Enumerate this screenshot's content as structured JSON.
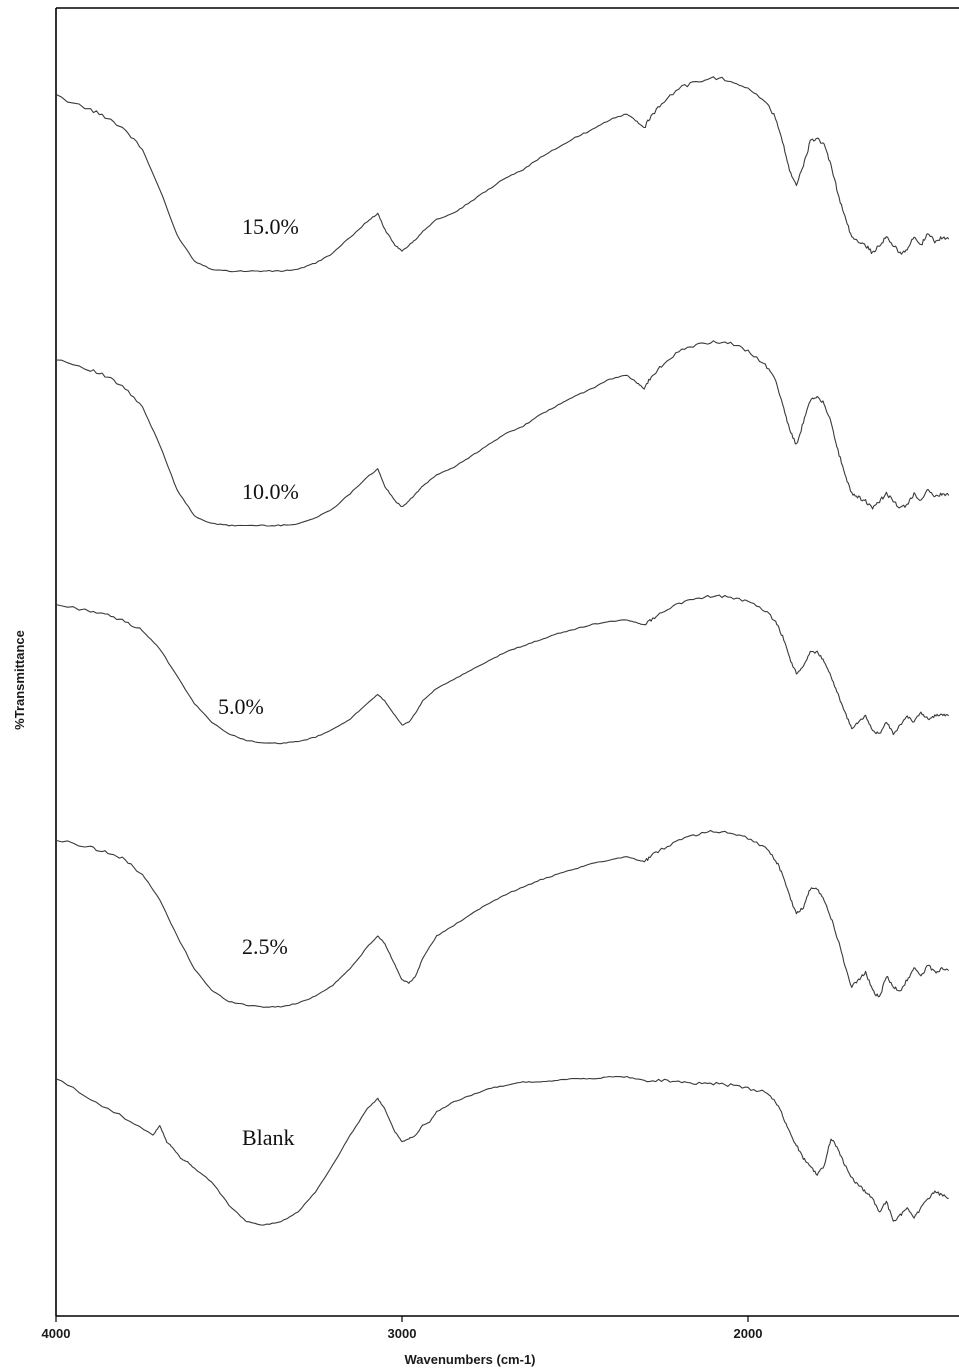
{
  "chart_data": {
    "type": "line",
    "xlabel": "Wavenumbers (cm-1)",
    "ylabel": "%Transmittance",
    "title": "",
    "xlim": [
      4000,
      1400
    ],
    "x_reversed": true,
    "x_ticks": [
      {
        "value": 4000,
        "label": "4000"
      },
      {
        "value": 3000,
        "label": "3000"
      },
      {
        "value": 2000,
        "label": "2000"
      }
    ],
    "y_ticks_shown": false,
    "grid": false,
    "legend": "none",
    "series_stacked_offset": true,
    "line_color": "#3a3a3a",
    "series": [
      {
        "name": "15.0%",
        "x": [
          4000,
          3900,
          3850,
          3800,
          3750,
          3700,
          3650,
          3600,
          3550,
          3500,
          3450,
          3400,
          3350,
          3300,
          3250,
          3200,
          3150,
          3100,
          3070,
          3050,
          3020,
          3000,
          2980,
          2960,
          2940,
          2900,
          2850,
          2800,
          2750,
          2700,
          2650,
          2600,
          2550,
          2500,
          2450,
          2400,
          2350,
          2320,
          2300,
          2280,
          2250,
          2200,
          2150,
          2100,
          2050,
          2000,
          1950,
          1920,
          1900,
          1880,
          1860,
          1840,
          1820,
          1800,
          1780,
          1760,
          1740,
          1720,
          1700,
          1680,
          1660,
          1640,
          1620,
          1600,
          1580,
          1560,
          1540,
          1520,
          1500,
          1480,
          1460,
          1440,
          1420
        ],
        "y": [
          0.95,
          0.88,
          0.84,
          0.78,
          0.68,
          0.48,
          0.25,
          0.12,
          0.08,
          0.07,
          0.07,
          0.07,
          0.07,
          0.08,
          0.11,
          0.16,
          0.24,
          0.32,
          0.36,
          0.28,
          0.2,
          0.17,
          0.2,
          0.23,
          0.27,
          0.33,
          0.36,
          0.42,
          0.48,
          0.54,
          0.58,
          0.64,
          0.69,
          0.74,
          0.78,
          0.83,
          0.86,
          0.82,
          0.79,
          0.85,
          0.91,
          0.99,
          1.02,
          1.04,
          1.03,
          0.99,
          0.92,
          0.84,
          0.72,
          0.58,
          0.5,
          0.6,
          0.72,
          0.74,
          0.7,
          0.6,
          0.46,
          0.34,
          0.24,
          0.22,
          0.2,
          0.16,
          0.2,
          0.24,
          0.2,
          0.16,
          0.18,
          0.24,
          0.2,
          0.26,
          0.22,
          0.24,
          0.23
        ]
      },
      {
        "name": "10.0%",
        "x": [
          4000,
          3900,
          3850,
          3800,
          3750,
          3700,
          3650,
          3600,
          3550,
          3500,
          3450,
          3400,
          3350,
          3300,
          3250,
          3200,
          3150,
          3100,
          3070,
          3050,
          3020,
          3000,
          2980,
          2960,
          2940,
          2900,
          2850,
          2800,
          2750,
          2700,
          2650,
          2600,
          2550,
          2500,
          2450,
          2400,
          2350,
          2320,
          2300,
          2280,
          2250,
          2200,
          2150,
          2100,
          2050,
          2000,
          1950,
          1920,
          1900,
          1880,
          1860,
          1840,
          1820,
          1800,
          1780,
          1760,
          1740,
          1720,
          1700,
          1680,
          1660,
          1640,
          1620,
          1600,
          1580,
          1560,
          1540,
          1520,
          1500,
          1480,
          1460,
          1440,
          1420
        ],
        "y": [
          0.96,
          0.9,
          0.86,
          0.8,
          0.7,
          0.5,
          0.26,
          0.12,
          0.08,
          0.07,
          0.07,
          0.07,
          0.07,
          0.08,
          0.11,
          0.16,
          0.24,
          0.33,
          0.37,
          0.28,
          0.2,
          0.17,
          0.2,
          0.24,
          0.28,
          0.34,
          0.38,
          0.44,
          0.5,
          0.56,
          0.6,
          0.66,
          0.71,
          0.76,
          0.8,
          0.85,
          0.87,
          0.83,
          0.8,
          0.86,
          0.92,
          1.0,
          1.03,
          1.05,
          1.04,
          1.0,
          0.93,
          0.84,
          0.72,
          0.58,
          0.5,
          0.62,
          0.74,
          0.76,
          0.72,
          0.62,
          0.47,
          0.34,
          0.24,
          0.22,
          0.2,
          0.16,
          0.2,
          0.24,
          0.2,
          0.16,
          0.18,
          0.24,
          0.2,
          0.26,
          0.22,
          0.24,
          0.23
        ]
      },
      {
        "name": "5.0%",
        "x": [
          4000,
          3900,
          3850,
          3800,
          3750,
          3700,
          3650,
          3600,
          3550,
          3500,
          3450,
          3400,
          3350,
          3300,
          3250,
          3200,
          3150,
          3100,
          3070,
          3050,
          3020,
          3000,
          2980,
          2960,
          2940,
          2900,
          2850,
          2800,
          2750,
          2700,
          2650,
          2600,
          2550,
          2500,
          2450,
          2400,
          2350,
          2320,
          2300,
          2280,
          2250,
          2200,
          2150,
          2100,
          2050,
          2000,
          1950,
          1920,
          1900,
          1880,
          1860,
          1840,
          1820,
          1800,
          1780,
          1760,
          1740,
          1720,
          1700,
          1680,
          1660,
          1640,
          1620,
          1600,
          1580,
          1560,
          1540,
          1520,
          1500,
          1480,
          1460,
          1440,
          1420
        ],
        "y": [
          0.97,
          0.93,
          0.9,
          0.86,
          0.8,
          0.68,
          0.5,
          0.32,
          0.2,
          0.12,
          0.08,
          0.06,
          0.06,
          0.07,
          0.1,
          0.15,
          0.22,
          0.32,
          0.38,
          0.34,
          0.24,
          0.18,
          0.2,
          0.26,
          0.34,
          0.42,
          0.48,
          0.54,
          0.6,
          0.66,
          0.7,
          0.74,
          0.78,
          0.81,
          0.84,
          0.86,
          0.87,
          0.85,
          0.84,
          0.87,
          0.92,
          0.98,
          1.01,
          1.03,
          1.02,
          0.99,
          0.93,
          0.86,
          0.76,
          0.62,
          0.52,
          0.56,
          0.66,
          0.66,
          0.6,
          0.5,
          0.38,
          0.26,
          0.16,
          0.2,
          0.24,
          0.14,
          0.12,
          0.2,
          0.12,
          0.18,
          0.24,
          0.2,
          0.26,
          0.22,
          0.24,
          0.25,
          0.24
        ]
      },
      {
        "name": "2.5%",
        "x": [
          4000,
          3900,
          3850,
          3800,
          3750,
          3700,
          3650,
          3600,
          3550,
          3500,
          3450,
          3400,
          3350,
          3300,
          3250,
          3200,
          3150,
          3100,
          3070,
          3050,
          3020,
          3000,
          2980,
          2960,
          2940,
          2900,
          2850,
          2800,
          2750,
          2700,
          2650,
          2600,
          2550,
          2500,
          2450,
          2400,
          2350,
          2320,
          2300,
          2280,
          2250,
          2200,
          2150,
          2100,
          2050,
          2000,
          1950,
          1920,
          1900,
          1880,
          1860,
          1840,
          1820,
          1800,
          1780,
          1760,
          1740,
          1720,
          1700,
          1680,
          1660,
          1640,
          1620,
          1600,
          1580,
          1560,
          1540,
          1520,
          1500,
          1480,
          1460,
          1440,
          1420
        ],
        "y": [
          0.97,
          0.93,
          0.9,
          0.86,
          0.78,
          0.64,
          0.44,
          0.26,
          0.14,
          0.08,
          0.06,
          0.05,
          0.05,
          0.07,
          0.11,
          0.17,
          0.26,
          0.38,
          0.44,
          0.4,
          0.28,
          0.2,
          0.18,
          0.22,
          0.32,
          0.44,
          0.5,
          0.56,
          0.62,
          0.67,
          0.71,
          0.75,
          0.78,
          0.81,
          0.84,
          0.86,
          0.88,
          0.86,
          0.85,
          0.88,
          0.92,
          0.97,
          1.0,
          1.02,
          1.01,
          0.98,
          0.93,
          0.86,
          0.78,
          0.66,
          0.56,
          0.6,
          0.7,
          0.7,
          0.64,
          0.54,
          0.42,
          0.28,
          0.16,
          0.2,
          0.24,
          0.14,
          0.1,
          0.22,
          0.16,
          0.14,
          0.2,
          0.26,
          0.22,
          0.28,
          0.24,
          0.26,
          0.25
        ]
      },
      {
        "name": "Blank",
        "x": [
          4000,
          3900,
          3800,
          3720,
          3700,
          3680,
          3660,
          3640,
          3620,
          3600,
          3550,
          3500,
          3450,
          3400,
          3350,
          3300,
          3250,
          3200,
          3150,
          3100,
          3070,
          3050,
          3020,
          3000,
          2980,
          2960,
          2940,
          2920,
          2900,
          2850,
          2800,
          2750,
          2700,
          2650,
          2600,
          2550,
          2500,
          2450,
          2400,
          2350,
          2300,
          2250,
          2200,
          2150,
          2100,
          2050,
          2000,
          1950,
          1920,
          1900,
          1880,
          1860,
          1840,
          1820,
          1800,
          1780,
          1760,
          1740,
          1720,
          1700,
          1680,
          1660,
          1640,
          1620,
          1600,
          1580,
          1560,
          1540,
          1520,
          1500,
          1480,
          1460,
          1440,
          1420
        ],
        "y": [
          0.98,
          0.86,
          0.74,
          0.64,
          0.7,
          0.6,
          0.56,
          0.5,
          0.48,
          0.44,
          0.36,
          0.22,
          0.12,
          0.1,
          0.12,
          0.18,
          0.3,
          0.46,
          0.64,
          0.8,
          0.86,
          0.8,
          0.66,
          0.6,
          0.62,
          0.64,
          0.7,
          0.72,
          0.78,
          0.84,
          0.88,
          0.92,
          0.94,
          0.96,
          0.96,
          0.97,
          0.98,
          0.98,
          0.99,
          0.99,
          0.97,
          0.97,
          0.96,
          0.95,
          0.95,
          0.94,
          0.92,
          0.9,
          0.84,
          0.76,
          0.66,
          0.58,
          0.5,
          0.46,
          0.4,
          0.46,
          0.62,
          0.56,
          0.46,
          0.38,
          0.34,
          0.3,
          0.26,
          0.18,
          0.24,
          0.12,
          0.16,
          0.2,
          0.14,
          0.2,
          0.26,
          0.3,
          0.28,
          0.26
        ]
      }
    ],
    "series_label_positions": [
      "upper-left-of-curve"
    ]
  }
}
